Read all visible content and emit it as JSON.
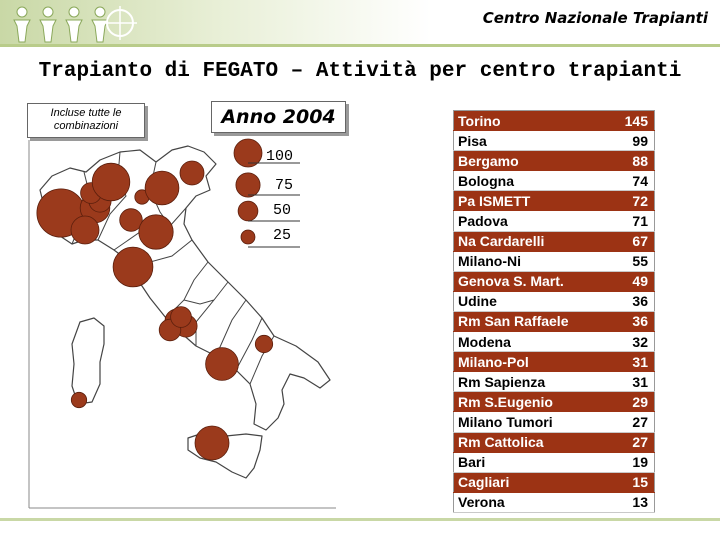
{
  "header": {
    "brand": "Centro Nazionale Trapianti"
  },
  "title": "Trapianto di FEGATO – Attività per centro trapianti",
  "note": "Incluse tutte le combinazioni",
  "year_label": "Anno 2004",
  "colors": {
    "accent": "#9c3314",
    "bubble": "#9b3a1c",
    "banner": "#c9d8a6"
  },
  "legend": {
    "items": [
      {
        "label": "100",
        "value": 100
      },
      {
        "label": "75",
        "value": 75
      },
      {
        "label": "50",
        "value": 50
      },
      {
        "label": "25",
        "value": 25
      }
    ]
  },
  "table": {
    "rows": [
      {
        "name": "Torino",
        "value": "145",
        "highlight": true
      },
      {
        "name": "Pisa",
        "value": "99",
        "highlight": false
      },
      {
        "name": "Bergamo",
        "value": "88",
        "highlight": true
      },
      {
        "name": "Bologna",
        "value": "74",
        "highlight": false
      },
      {
        "name": "Pa ISMETT",
        "value": "72",
        "highlight": true
      },
      {
        "name": "Padova",
        "value": "71",
        "highlight": false
      },
      {
        "name": "Na Cardarelli",
        "value": "67",
        "highlight": true
      },
      {
        "name": "Milano-Ni",
        "value": "55",
        "highlight": false
      },
      {
        "name": "Genova S. Mart.",
        "value": "49",
        "highlight": true
      },
      {
        "name": "Udine",
        "value": "36",
        "highlight": false
      },
      {
        "name": "Rm San Raffaele",
        "value": "36",
        "highlight": true
      },
      {
        "name": "Modena",
        "value": "32",
        "highlight": false
      },
      {
        "name": "Milano-Pol",
        "value": "31",
        "highlight": true
      },
      {
        "name": "Rm Sapienza",
        "value": "31",
        "highlight": false
      },
      {
        "name": "Rm S.Eugenio",
        "value": "29",
        "highlight": true
      },
      {
        "name": "Milano Tumori",
        "value": "27",
        "highlight": false
      },
      {
        "name": "Rm Cattolica",
        "value": "27",
        "highlight": true
      },
      {
        "name": "Bari",
        "value": "19",
        "highlight": false
      },
      {
        "name": "Cagliari",
        "value": "15",
        "highlight": true
      },
      {
        "name": "Verona",
        "value": "13",
        "highlight": false
      }
    ]
  },
  "map_bubbles": [
    {
      "center": "Torino",
      "value": 145
    },
    {
      "center": "Milano-Ni",
      "value": 55
    },
    {
      "center": "Milano-Pol",
      "value": 31
    },
    {
      "center": "Milano Tumori",
      "value": 27
    },
    {
      "center": "Bergamo",
      "value": 88
    },
    {
      "center": "Verona",
      "value": 13
    },
    {
      "center": "Padova",
      "value": 71
    },
    {
      "center": "Udine",
      "value": 36
    },
    {
      "center": "Genova S. Mart.",
      "value": 49
    },
    {
      "center": "Modena",
      "value": 32
    },
    {
      "center": "Bologna",
      "value": 74
    },
    {
      "center": "Pisa",
      "value": 99
    },
    {
      "center": "Rm San Raffaele",
      "value": 36
    },
    {
      "center": "Rm Sapienza",
      "value": 31
    },
    {
      "center": "Rm S.Eugenio",
      "value": 29
    },
    {
      "center": "Rm Cattolica",
      "value": 27
    },
    {
      "center": "Na Cardarelli",
      "value": 67
    },
    {
      "center": "Bari",
      "value": 19
    },
    {
      "center": "Cagliari",
      "value": 15
    },
    {
      "center": "Pa ISMETT",
      "value": 72
    }
  ]
}
